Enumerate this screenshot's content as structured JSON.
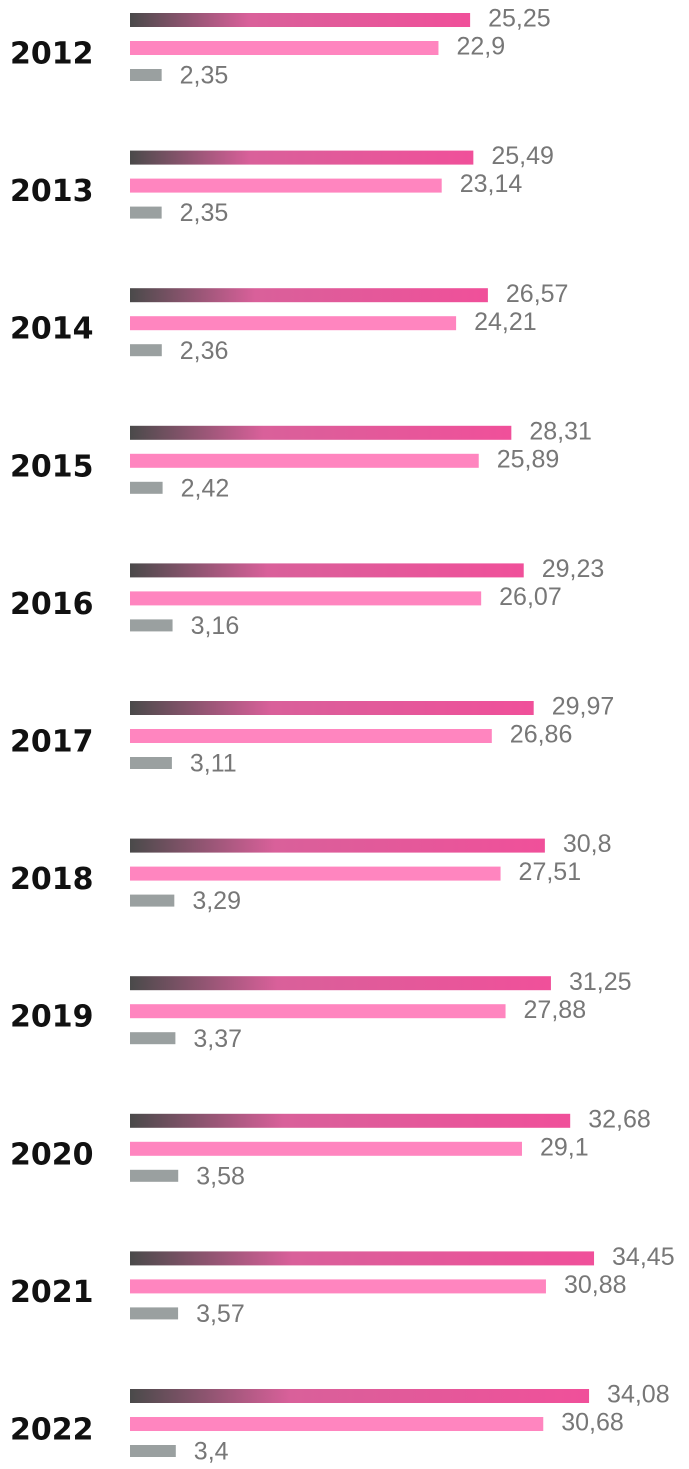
{
  "chart_data": {
    "type": "bar",
    "orientation": "horizontal",
    "categories": [
      "2012",
      "2013",
      "2014",
      "2015",
      "2016",
      "2017",
      "2018",
      "2019",
      "2020",
      "2021",
      "2022"
    ],
    "series": [
      {
        "color": "#f0509a",
        "values": [
          25.25,
          25.49,
          26.57,
          28.31,
          29.23,
          29.97,
          30.8,
          31.25,
          32.68,
          34.45,
          34.08
        ],
        "value_labels": [
          "25,25",
          "25,49",
          "26,57",
          "28,31",
          "29,23",
          "29,97",
          "30,8",
          "31,25",
          "32,68",
          "34,45",
          "34,08"
        ]
      },
      {
        "color": "#ff85bf",
        "values": [
          22.9,
          23.14,
          24.21,
          25.89,
          26.07,
          26.86,
          27.51,
          27.88,
          29.1,
          30.88,
          30.68
        ],
        "value_labels": [
          "22,9",
          "23,14",
          "24,21",
          "25,89",
          "26,07",
          "26,86",
          "27,51",
          "27,88",
          "29,1",
          "30,88",
          "30,68"
        ]
      },
      {
        "color": "#9aa0a0",
        "values": [
          2.35,
          2.35,
          2.36,
          2.42,
          3.16,
          3.11,
          3.29,
          3.37,
          3.58,
          3.57,
          3.4
        ],
        "value_labels": [
          "2,35",
          "2,35",
          "2,36",
          "2,42",
          "3,16",
          "3,11",
          "3,29",
          "3,37",
          "3,58",
          "3,57",
          "3,4"
        ]
      }
    ]
  }
}
